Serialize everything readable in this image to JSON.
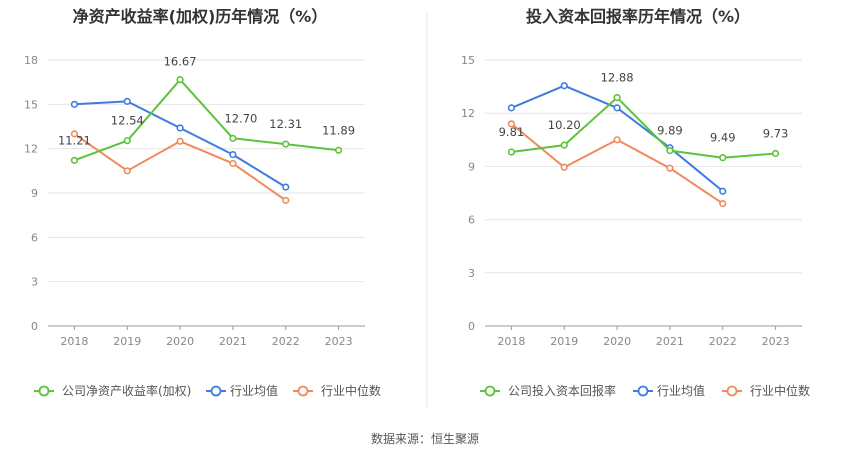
{
  "source": "数据来源：恒生聚源",
  "chart_data": [
    {
      "type": "line",
      "title": "净资产收益率(加权)历年情况（%）",
      "categories": [
        "2018",
        "2019",
        "2020",
        "2021",
        "2022",
        "2023"
      ],
      "ylim": [
        0,
        18
      ],
      "yticks": [
        "0",
        "3",
        "6",
        "9",
        "12",
        "15",
        "18"
      ],
      "grid": true,
      "legend_position": "bottom",
      "series": [
        {
          "name": "公司净资产收益率(加权)",
          "color": "#5cc33c",
          "values": [
            11.21,
            12.54,
            16.67,
            12.7,
            12.31,
            11.89
          ],
          "labels": [
            "11.21",
            "12.54",
            "16.67",
            "12.70",
            "12.31",
            "11.89"
          ]
        },
        {
          "name": "行业均值",
          "color": "#3f7ce0",
          "values": [
            15.0,
            15.2,
            13.4,
            11.6,
            9.4,
            null
          ]
        },
        {
          "name": "行业中位数",
          "color": "#f08a5d",
          "values": [
            13.0,
            10.5,
            12.5,
            11.0,
            8.5,
            null
          ]
        }
      ]
    },
    {
      "type": "line",
      "title": "投入资本回报率历年情况（%）",
      "categories": [
        "2018",
        "2019",
        "2020",
        "2021",
        "2022",
        "2023"
      ],
      "ylim": [
        0,
        15
      ],
      "yticks": [
        "0",
        "3",
        "6",
        "9",
        "12",
        "15"
      ],
      "grid": true,
      "legend_position": "bottom",
      "series": [
        {
          "name": "公司投入资本回报率",
          "color": "#5cc33c",
          "values": [
            9.81,
            10.2,
            12.88,
            9.89,
            9.49,
            9.73
          ],
          "labels": [
            "9.81",
            "10.20",
            "12.88",
            "9.89",
            "9.49",
            "9.73"
          ]
        },
        {
          "name": "行业均值",
          "color": "#3f7ce0",
          "values": [
            12.3,
            13.55,
            12.3,
            10.05,
            7.6,
            null
          ]
        },
        {
          "name": "行业中位数",
          "color": "#f08a5d",
          "values": [
            11.4,
            8.95,
            10.5,
            8.9,
            6.9,
            null
          ]
        }
      ]
    }
  ]
}
